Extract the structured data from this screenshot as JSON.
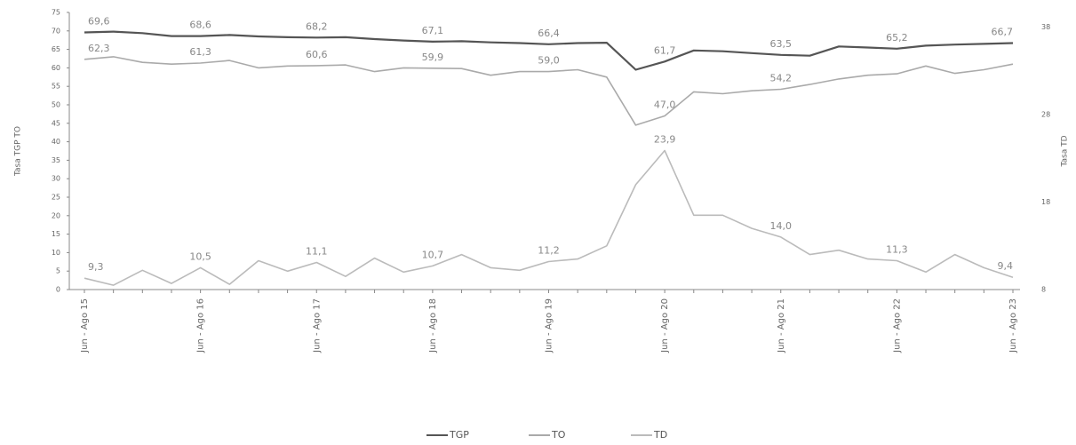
{
  "chart_data": {
    "type": "line",
    "y_label": "Tasa TGP TO",
    "y2_label": "Tasa TD",
    "categories": [
      "Jun - Ago 15",
      null,
      null,
      null,
      "Jun - Ago 16",
      null,
      null,
      null,
      "Jun - Ago 17",
      null,
      null,
      null,
      "Jun - Ago 18",
      null,
      null,
      null,
      "Jun - Ago 19",
      null,
      null,
      null,
      "Jun - Ago 20",
      null,
      null,
      null,
      "Jun - Ago 21",
      null,
      null,
      null,
      "Jun - Ago 22",
      null,
      null,
      null,
      "Jun - Ago 23"
    ],
    "ylim": [
      0,
      75
    ],
    "yticks": [
      0,
      5,
      10,
      15,
      20,
      25,
      30,
      35,
      40,
      45,
      50,
      55,
      60,
      65,
      70,
      75
    ],
    "y2lim": [
      8,
      39.7
    ],
    "y2ticks": [
      8,
      18,
      28,
      38
    ],
    "series": [
      {
        "name": "TGP",
        "color": "#555555",
        "values": [
          69.6,
          69.8,
          69.4,
          68.6,
          68.6,
          68.9,
          68.5,
          68.3,
          68.2,
          68.3,
          67.8,
          67.4,
          67.1,
          67.2,
          66.9,
          66.7,
          66.4,
          66.7,
          66.8,
          59.5,
          61.7,
          64.7,
          64.5,
          64.0,
          63.5,
          63.3,
          65.8,
          65.5,
          65.2,
          66.0,
          66.3,
          66.5,
          66.7
        ],
        "value_labels": [
          "69,6",
          null,
          null,
          null,
          "68,6",
          null,
          null,
          null,
          "68,2",
          null,
          null,
          null,
          "67,1",
          null,
          null,
          null,
          "66,4",
          null,
          null,
          null,
          "61,7",
          null,
          null,
          null,
          "63,5",
          null,
          null,
          null,
          "65,2",
          null,
          null,
          null,
          "66,7"
        ]
      },
      {
        "name": "TO",
        "color": "#aaaaaa",
        "values": [
          62.3,
          63.0,
          61.5,
          61.0,
          61.3,
          62.0,
          60.0,
          60.5,
          60.6,
          60.8,
          59.0,
          60.0,
          59.9,
          59.8,
          58.0,
          59.0,
          59.0,
          59.5,
          57.5,
          44.5,
          47.0,
          53.5,
          53.0,
          53.8,
          54.2,
          55.5,
          57.0,
          58.0,
          58.4,
          60.5,
          58.5,
          59.5,
          61.0
        ],
        "value_labels": [
          "62,3",
          null,
          null,
          null,
          "61,3",
          null,
          null,
          null,
          "60,6",
          null,
          null,
          null,
          "59,9",
          null,
          null,
          null,
          "59,0",
          null,
          null,
          null,
          "47,0",
          null,
          null,
          null,
          "54,2",
          null,
          null,
          null,
          null,
          null,
          null,
          null,
          null
        ]
      },
      {
        "name": "TD",
        "color": "#bbbbbb",
        "axis": "y2",
        "values": [
          9.3,
          8.5,
          10.2,
          8.7,
          10.5,
          8.6,
          11.3,
          10.1,
          11.1,
          9.5,
          11.6,
          10.0,
          10.7,
          12.0,
          10.5,
          10.2,
          11.2,
          11.5,
          13.0,
          20.0,
          23.9,
          16.5,
          16.5,
          15.0,
          14.0,
          12.0,
          12.5,
          11.5,
          11.3,
          10.0,
          12.0,
          10.5,
          9.4
        ],
        "value_labels": [
          "9,3",
          null,
          null,
          null,
          "10,5",
          null,
          null,
          null,
          "11,1",
          null,
          null,
          null,
          "10,7",
          null,
          null,
          null,
          "11,2",
          null,
          null,
          null,
          "23,9",
          null,
          null,
          null,
          "14,0",
          null,
          null,
          null,
          "11,3",
          null,
          null,
          null,
          "9,4"
        ]
      }
    ]
  }
}
